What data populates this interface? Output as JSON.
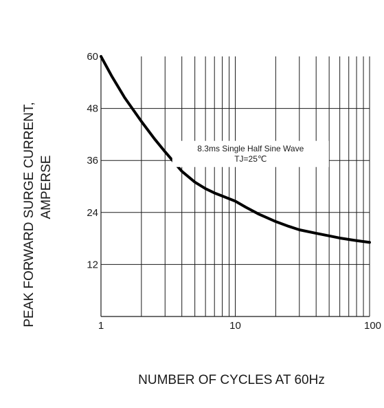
{
  "chart_data": {
    "type": "line",
    "title": "",
    "xlabel": "NUMBER OF CYCLES AT 60Hz",
    "ylabel_lines": [
      "PEAK FORWARD SURGE CURRENT,",
      "AMPERSE"
    ],
    "x_scale": "log",
    "xlim": [
      1,
      100
    ],
    "ylim": [
      0,
      60
    ],
    "x_ticks": [
      {
        "value": 1,
        "label": "1"
      },
      {
        "value": 10,
        "label": "10"
      },
      {
        "value": 100,
        "label": "100"
      }
    ],
    "y_ticks": [
      {
        "value": 12,
        "label": "12"
      },
      {
        "value": 24,
        "label": "24"
      },
      {
        "value": 36,
        "label": "36"
      },
      {
        "value": 48,
        "label": "48"
      },
      {
        "value": 60,
        "label": "60"
      }
    ],
    "grid": true,
    "series": [
      {
        "x": [
          1,
          1.2,
          1.5,
          2,
          2.5,
          3,
          4,
          5,
          6,
          7,
          8,
          10,
          12,
          15,
          20,
          25,
          30,
          40,
          50,
          60,
          80,
          100
        ],
        "y": [
          60,
          55.5,
          50.5,
          45,
          41,
          38,
          33.5,
          31,
          29.5,
          28.5,
          27.8,
          26.6,
          25.2,
          23.6,
          21.9,
          20.8,
          20,
          19.2,
          18.6,
          18.1,
          17.5,
          17.1
        ]
      }
    ],
    "annotation": {
      "lines": [
        "8.3ms Single Half Sine Wave",
        "TJ=25℃"
      ],
      "x": 13,
      "y": 37.5
    }
  }
}
